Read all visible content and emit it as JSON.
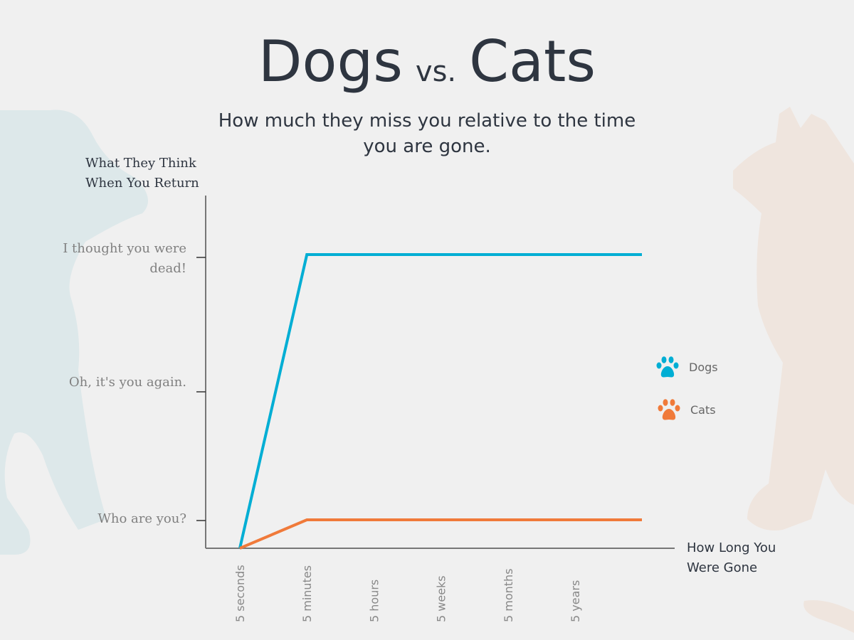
{
  "title": {
    "dogs": "Dogs",
    "vs": "vs.",
    "cats": "Cats"
  },
  "subtitle": "How much they miss you relative to the time you are gone.",
  "chart_data": {
    "type": "line",
    "ylabel": "What They Think When You Return",
    "xlabel": "How Long You Were Gone",
    "categories": [
      "5 seconds",
      "5 minutes",
      "5 hours",
      "5 weeks",
      "5 months",
      "5 years",
      ""
    ],
    "y_levels": [
      "",
      "Who are you?",
      "Oh, it's you again.",
      "I thought you were dead!"
    ],
    "series": [
      {
        "name": "Dogs",
        "color": "#00aed4",
        "values": [
          0,
          3,
          3,
          3,
          3,
          3,
          3
        ]
      },
      {
        "name": "Cats",
        "color": "#f07a3a",
        "values": [
          0,
          1,
          1,
          1,
          1,
          1,
          1
        ]
      }
    ],
    "legend_position": "right",
    "grid": false
  },
  "legend": [
    {
      "label": "Dogs",
      "icon": "paw-icon",
      "color": "#00aed4"
    },
    {
      "label": "Cats",
      "icon": "paw-icon",
      "color": "#f07a3a"
    }
  ],
  "background_colors": {
    "dog": "#dde8ea",
    "cat": "#efe5de"
  }
}
